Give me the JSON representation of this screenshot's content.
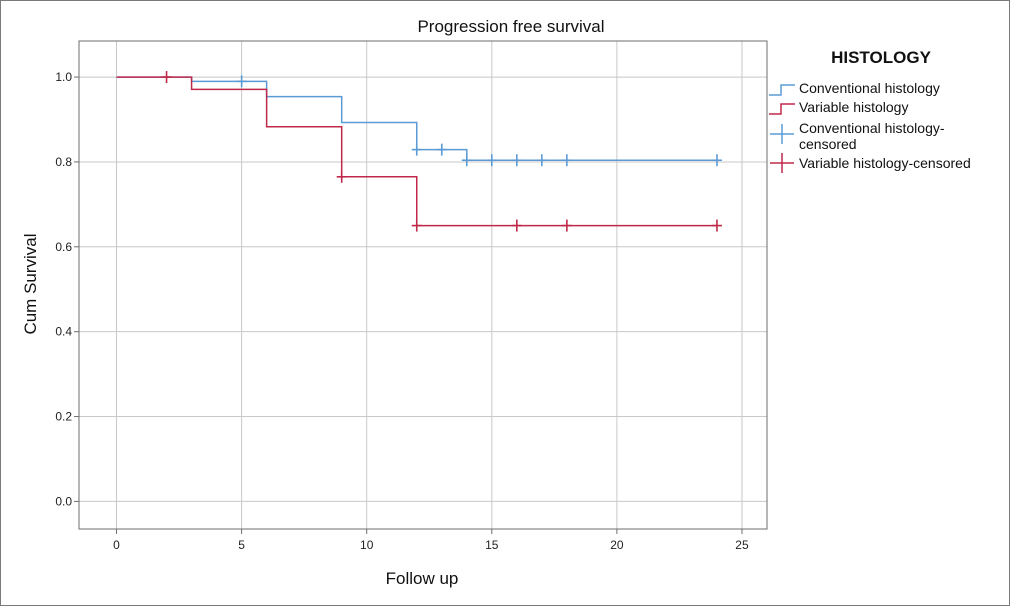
{
  "chart_data": {
    "type": "line",
    "title": "Progression free survival",
    "xlabel": "Follow up",
    "ylabel": "Cum Survival",
    "xlim": [
      -1.5,
      26
    ],
    "ylim": [
      -0.065,
      1.085
    ],
    "x_ticks": [
      0,
      5,
      10,
      15,
      20,
      25
    ],
    "y_ticks": [
      0.0,
      0.2,
      0.4,
      0.6,
      0.8,
      1.0
    ],
    "x_tick_labels": [
      "0",
      "5",
      "10",
      "15",
      "20",
      "25"
    ],
    "y_tick_labels": [
      "0.0",
      "0.2",
      "0.4",
      "0.6",
      "0.8",
      "1.0"
    ],
    "grid": true,
    "legend_title": "HISTOLOGY",
    "legend_position": "right",
    "series": [
      {
        "name": "Conventional histology",
        "color": "#5b9bd5",
        "step": [
          [
            0,
            1.0
          ],
          [
            3,
            0.99
          ],
          [
            6,
            0.954
          ],
          [
            9,
            0.893
          ],
          [
            12,
            0.829
          ],
          [
            14,
            0.804
          ],
          [
            24,
            0.804
          ]
        ],
        "censored_name": "Conventional histology-censored",
        "censored": [
          [
            5,
            0.99
          ],
          [
            12,
            0.829
          ],
          [
            13,
            0.829
          ],
          [
            14,
            0.804
          ],
          [
            15,
            0.804
          ],
          [
            16,
            0.804
          ],
          [
            17,
            0.804
          ],
          [
            18,
            0.804
          ],
          [
            24,
            0.804
          ]
        ]
      },
      {
        "name": "Variable histology",
        "color": "#c0284a",
        "step": [
          [
            0,
            1.0
          ],
          [
            3,
            0.971
          ],
          [
            6,
            0.883
          ],
          [
            9,
            0.765
          ],
          [
            12,
            0.65
          ],
          [
            24,
            0.65
          ]
        ],
        "censored_name": "Variable histology-censored",
        "censored": [
          [
            2,
            1.0
          ],
          [
            9,
            0.765
          ],
          [
            12,
            0.65
          ],
          [
            16,
            0.65
          ],
          [
            18,
            0.65
          ],
          [
            24,
            0.65
          ]
        ]
      }
    ],
    "legend_entries": [
      {
        "line1": "Conventional histology",
        "line2": ""
      },
      {
        "line1": "Variable histology",
        "line2": ""
      },
      {
        "line1": "Conventional histology-",
        "line2": "censored"
      },
      {
        "line1": "Variable histology-censored",
        "line2": ""
      }
    ]
  }
}
